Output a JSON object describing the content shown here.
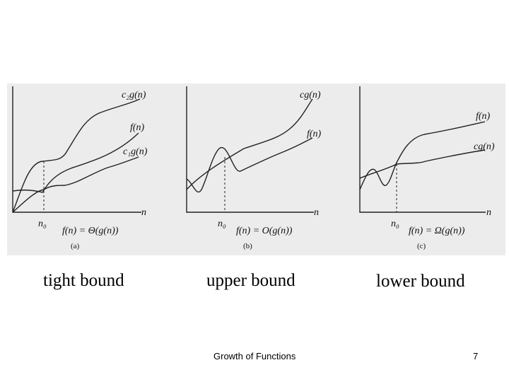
{
  "panels": [
    {
      "id": "a",
      "curve_labels": {
        "upper": "c₂g(n)",
        "middle": "f(n)",
        "lower": "c₁g(n)"
      },
      "axis_label": "n",
      "threshold_label": "n₀",
      "formula": "f(n) = Θ(g(n))",
      "sub_label": "(a)",
      "caption": "tight bound"
    },
    {
      "id": "b",
      "curve_labels": {
        "upper": "cg(n)",
        "lower": "f(n)"
      },
      "axis_label": "n",
      "threshold_label": "n₀",
      "formula": "f(n) = O(g(n))",
      "sub_label": "(b)",
      "caption": "upper bound"
    },
    {
      "id": "c",
      "curve_labels": {
        "upper": "f(n)",
        "lower": "cg(n)"
      },
      "axis_label": "n",
      "threshold_label": "n₀",
      "formula": "f(n) = Ω(g(n))",
      "sub_label": "(c)",
      "caption": "lower bound"
    }
  ],
  "footer": {
    "title": "Growth of Functions",
    "page_number": "7"
  }
}
